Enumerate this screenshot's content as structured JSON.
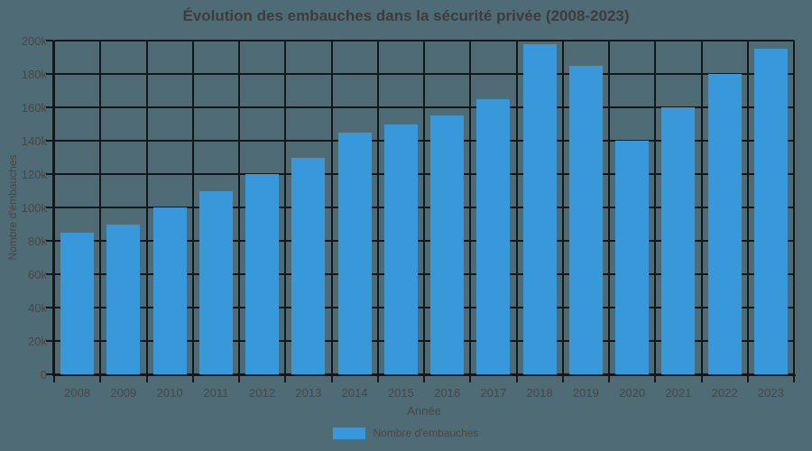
{
  "colors": {
    "background": "#4e6b76",
    "bar": "#3898d9",
    "grid": "#15181b",
    "title_text": "#3c3c3c",
    "label_text": "#4b4640"
  },
  "chart_data": {
    "type": "bar",
    "title": "Évolution des embauches dans la sécurité privée (2008-2023)",
    "xlabel": "Année",
    "ylabel": "Nombre d'embauches",
    "legend_label": "Nombre d'embauches",
    "legend_position": "bottom",
    "grid": true,
    "categories": [
      "2008",
      "2009",
      "2010",
      "2011",
      "2012",
      "2013",
      "2014",
      "2015",
      "2016",
      "2017",
      "2018",
      "2019",
      "2020",
      "2021",
      "2022",
      "2023"
    ],
    "values": [
      85000,
      90000,
      100000,
      110000,
      120000,
      130000,
      145000,
      150000,
      155000,
      165000,
      198000,
      185000,
      140000,
      160000,
      180000,
      195000
    ],
    "ylim": [
      0,
      200000
    ],
    "ytick_step": 20000,
    "ytick_labels": [
      "0",
      "20k",
      "40k",
      "60k",
      "80k",
      "100k",
      "120k",
      "140k",
      "160k",
      "180k",
      "200k"
    ]
  }
}
